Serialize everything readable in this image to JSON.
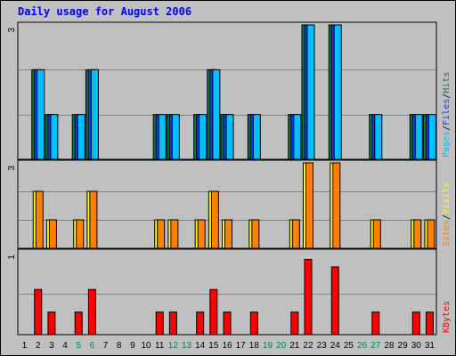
{
  "chart_data": {
    "type": "bar",
    "title": "Daily usage for August 2006",
    "days": [
      "1",
      "2",
      "3",
      "4",
      "5",
      "6",
      "7",
      "8",
      "9",
      "10",
      "11",
      "12",
      "13",
      "14",
      "15",
      "16",
      "17",
      "18",
      "19",
      "20",
      "21",
      "22",
      "23",
      "24",
      "25",
      "26",
      "27",
      "28",
      "29",
      "30",
      "31"
    ],
    "weekend_days": [
      "5",
      "6",
      "12",
      "13",
      "19",
      "20",
      "26",
      "27"
    ],
    "panels": [
      {
        "name": "hits-files-pages",
        "max_label": "3",
        "ymax": 3,
        "legend": [
          "Pages",
          "/",
          "Files",
          "/",
          "Hits"
        ],
        "legend_colors": [
          "#00c0ff",
          "#000000",
          "#0040ff",
          "#000000",
          "#008040"
        ],
        "series": [
          {
            "name": "Hits",
            "color": "#008040",
            "values": [
              0,
              2,
              1,
              0,
              1,
              2,
              0,
              0,
              0,
              0,
              1,
              1,
              0,
              1,
              2,
              1,
              0,
              1,
              0,
              0,
              1,
              3,
              0,
              3,
              0,
              0,
              1,
              0,
              0,
              1,
              1
            ]
          },
          {
            "name": "Files",
            "color": "#0040ff",
            "values": [
              0,
              2,
              1,
              0,
              1,
              2,
              0,
              0,
              0,
              0,
              1,
              1,
              0,
              1,
              2,
              1,
              0,
              1,
              0,
              0,
              1,
              3,
              0,
              3,
              0,
              0,
              1,
              0,
              0,
              1,
              1
            ]
          },
          {
            "name": "Pages",
            "color": "#00c0ff",
            "values": [
              0,
              2,
              1,
              0,
              1,
              2,
              0,
              0,
              0,
              0,
              1,
              1,
              0,
              1,
              2,
              1,
              0,
              1,
              0,
              0,
              1,
              3,
              0,
              3,
              0,
              0,
              1,
              0,
              0,
              1,
              1
            ]
          }
        ]
      },
      {
        "name": "visits-sites",
        "max_label": "3",
        "ymax": 3,
        "legend": [
          "Sites",
          "/",
          "Visits"
        ],
        "legend_colors": [
          "#ff8000",
          "#000000",
          "#ffff00"
        ],
        "series": [
          {
            "name": "Visits",
            "color": "#ffff00",
            "values": [
              0,
              2,
              1,
              0,
              1,
              2,
              0,
              0,
              0,
              0,
              1,
              1,
              0,
              1,
              2,
              1,
              0,
              1,
              0,
              0,
              1,
              3,
              0,
              3,
              0,
              0,
              1,
              0,
              0,
              1,
              1
            ]
          },
          {
            "name": "Sites",
            "color": "#ff8000",
            "values": [
              0,
              2,
              1,
              0,
              1,
              2,
              0,
              0,
              0,
              0,
              1,
              1,
              0,
              1,
              2,
              1,
              0,
              1,
              0,
              0,
              1,
              3,
              0,
              3,
              0,
              0,
              1,
              0,
              0,
              1,
              1
            ]
          }
        ]
      },
      {
        "name": "kbytes",
        "max_label": "1",
        "ymax": 1.1,
        "legend": [
          "KBytes"
        ],
        "legend_colors": [
          "#ff0000"
        ],
        "series": [
          {
            "name": "KBytes",
            "color": "#ff0000",
            "values": [
              0,
              0.6,
              0.3,
              0,
              0.3,
              0.6,
              0,
              0,
              0,
              0,
              0.3,
              0.3,
              0,
              0.3,
              0.6,
              0.3,
              0,
              0.3,
              0,
              0,
              0.3,
              1.0,
              0,
              0.9,
              0,
              0,
              0.3,
              0,
              0,
              0.3,
              0.3
            ]
          }
        ]
      }
    ],
    "colors": {
      "background": "#c0c0c0",
      "plot_background": "#c0c0c0",
      "title": "#0000ff",
      "weekday_label": "#000000",
      "weekend_label": "#00805c"
    }
  }
}
